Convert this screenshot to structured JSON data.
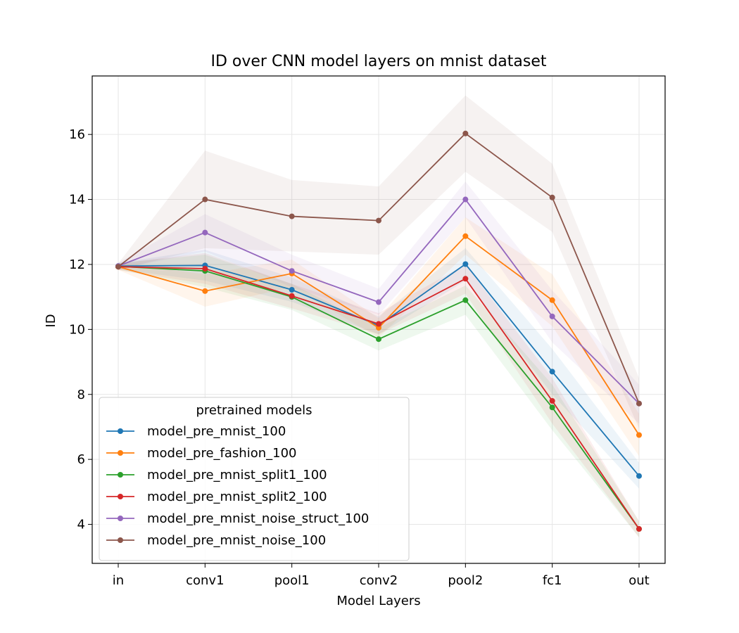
{
  "chart_data": {
    "type": "line",
    "title": "ID over CNN model layers on mnist dataset",
    "xlabel": "Model Layers",
    "ylabel": "ID",
    "categories": [
      "in",
      "conv1",
      "pool1",
      "conv2",
      "pool2",
      "fc1",
      "out"
    ],
    "ylim": [
      2.8,
      17.8
    ],
    "yticks": [
      4,
      6,
      8,
      10,
      12,
      14,
      16
    ],
    "grid": true,
    "legend": {
      "title": "pretrained models",
      "placement": "lower-left"
    },
    "series": [
      {
        "name": "model_pre_mnist_100",
        "color": "#1f77b4",
        "values": [
          11.95,
          11.97,
          11.22,
          10.12,
          12.01,
          8.7,
          5.49
        ],
        "lower": [
          11.85,
          11.5,
          10.85,
          9.85,
          11.5,
          8.0,
          5.1
        ],
        "upper": [
          12.05,
          12.45,
          11.6,
          10.4,
          12.5,
          9.4,
          5.9
        ]
      },
      {
        "name": "model_pre_fashion_100",
        "color": "#ff7f0e",
        "values": [
          11.93,
          11.18,
          11.72,
          10.05,
          12.87,
          10.9,
          6.75
        ],
        "lower": [
          11.83,
          10.7,
          11.3,
          9.75,
          12.3,
          10.1,
          6.1
        ],
        "upper": [
          12.03,
          11.7,
          12.15,
          10.35,
          13.45,
          11.7,
          7.4
        ]
      },
      {
        "name": "model_pre_mnist_split1_100",
        "color": "#2ca02c",
        "values": [
          11.94,
          11.8,
          11.0,
          9.7,
          10.9,
          7.6,
          3.86
        ],
        "lower": [
          11.84,
          11.3,
          10.6,
          9.35,
          10.45,
          6.9,
          3.6
        ],
        "upper": [
          12.04,
          12.3,
          11.4,
          10.05,
          11.35,
          8.3,
          4.1
        ]
      },
      {
        "name": "model_pre_mnist_split2_100",
        "color": "#d62728",
        "values": [
          11.93,
          11.87,
          11.03,
          10.17,
          11.56,
          7.8,
          3.86
        ],
        "lower": [
          11.83,
          11.4,
          10.65,
          9.85,
          11.1,
          7.1,
          3.6
        ],
        "upper": [
          12.03,
          12.35,
          11.4,
          10.5,
          12.0,
          8.5,
          4.1
        ]
      },
      {
        "name": "model_pre_mnist_noise_struct_100",
        "color": "#9467bd",
        "values": [
          11.95,
          12.98,
          11.8,
          10.84,
          14.0,
          10.4,
          7.72
        ],
        "lower": [
          11.85,
          12.4,
          11.3,
          10.45,
          13.45,
          9.6,
          7.1
        ],
        "upper": [
          12.05,
          13.55,
          12.3,
          11.25,
          14.55,
          11.2,
          8.3
        ]
      },
      {
        "name": "model_pre_mnist_noise_100",
        "color": "#8c564b",
        "values": [
          11.93,
          14.0,
          13.48,
          13.35,
          16.03,
          14.06,
          7.72
        ],
        "lower": [
          11.83,
          12.5,
          12.4,
          12.3,
          14.85,
          13.0,
          6.95
        ],
        "upper": [
          12.03,
          15.5,
          14.6,
          14.4,
          17.2,
          15.1,
          8.5
        ]
      }
    ]
  }
}
